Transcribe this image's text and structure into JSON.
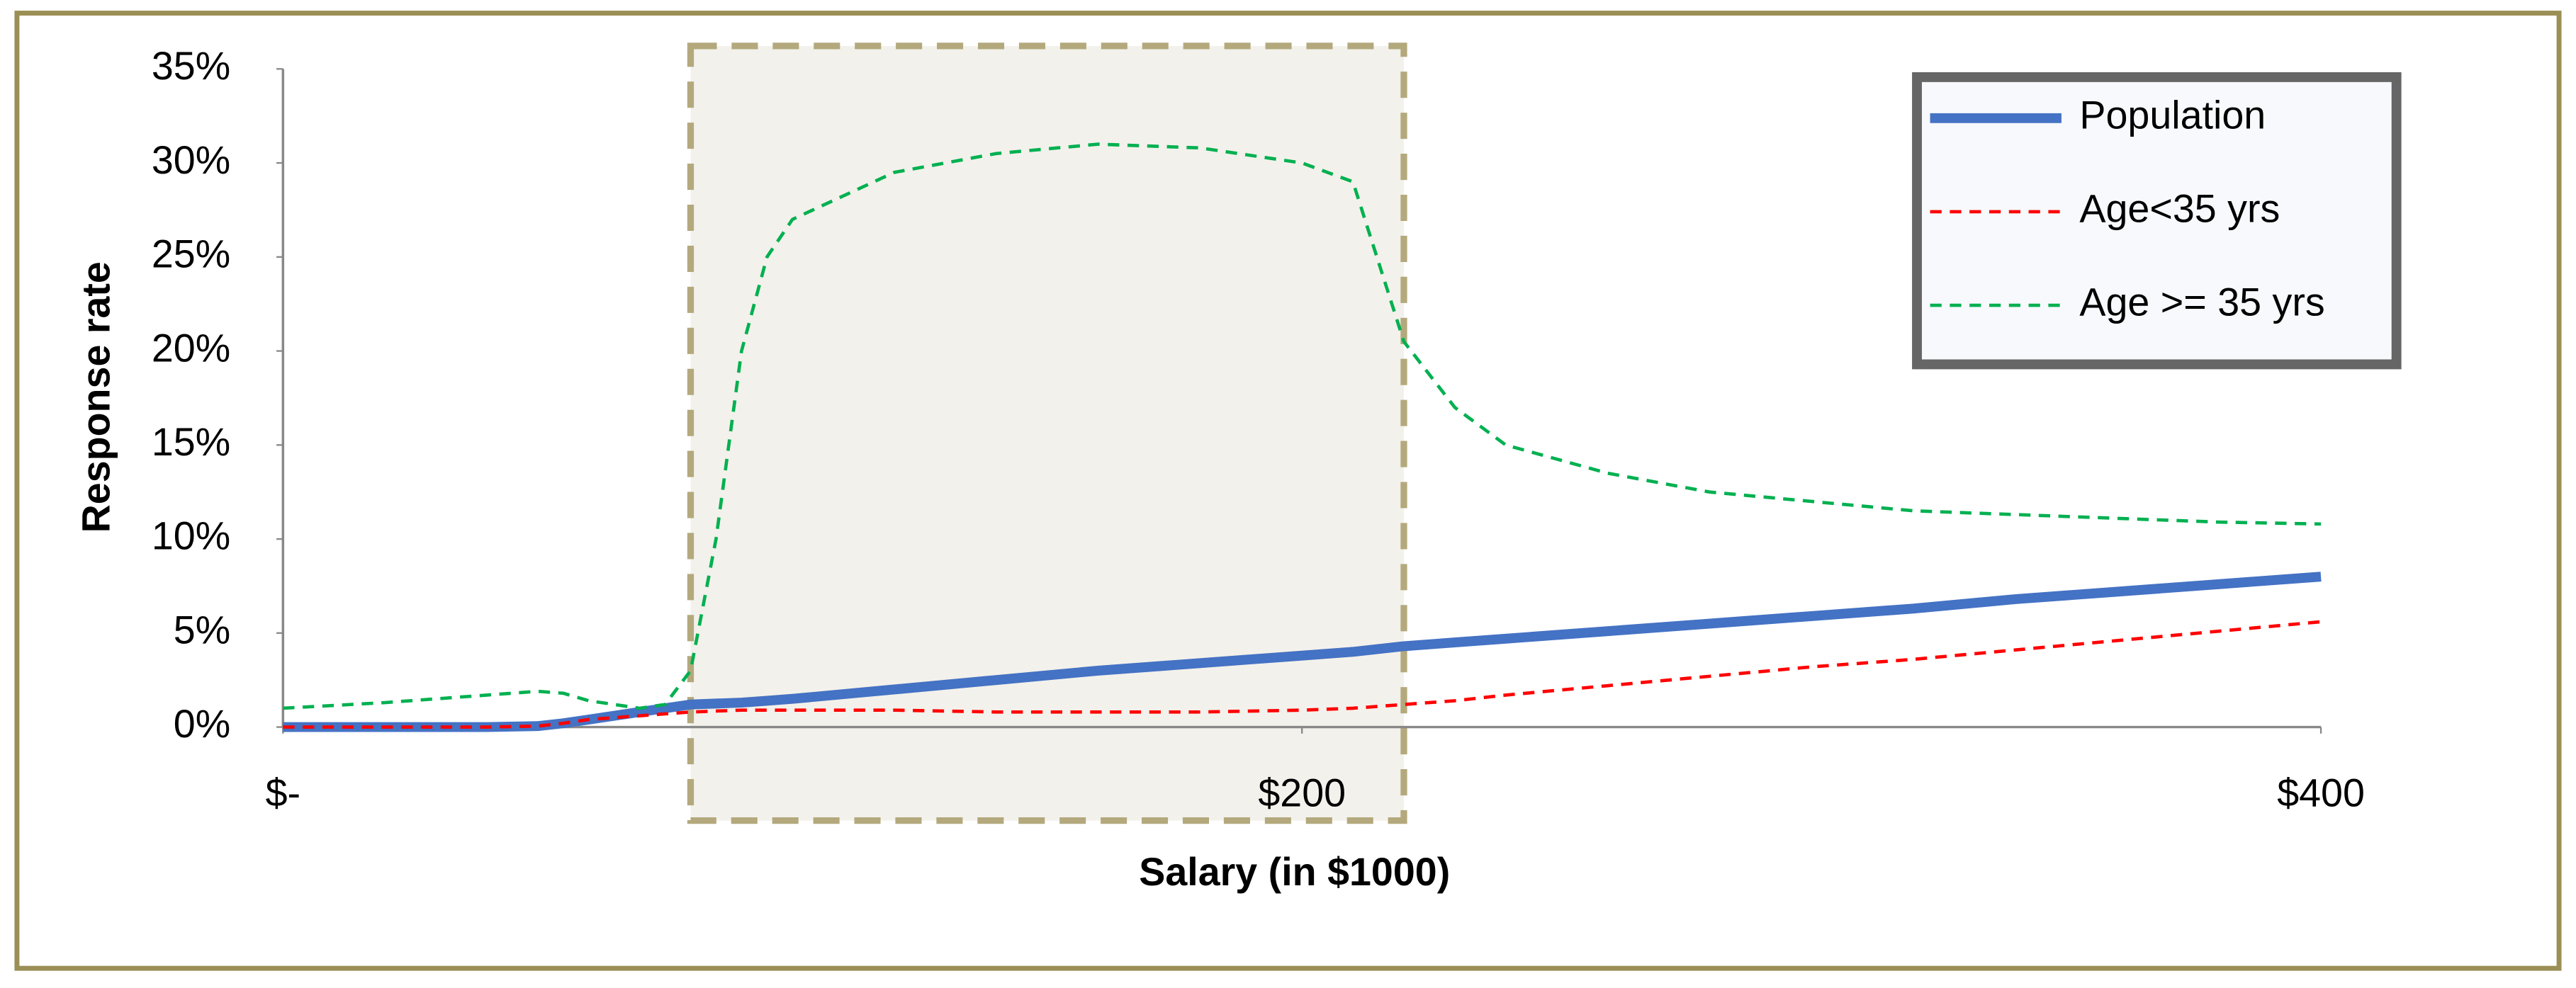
{
  "chart_data": {
    "type": "line",
    "x_label": "Salary (in $1000)",
    "y_label": "Response rate",
    "x": [
      0,
      20,
      40,
      50,
      55,
      60,
      70,
      75,
      80,
      85,
      90,
      95,
      100,
      120,
      140,
      160,
      180,
      200,
      210,
      220,
      230,
      240,
      260,
      280,
      300,
      320,
      340,
      360,
      380,
      400
    ],
    "series": [
      {
        "name": "Population",
        "color": "#4472c4",
        "style": "solid",
        "values": [
          0,
          0,
          0,
          0.05,
          0.2,
          0.4,
          0.8,
          1.0,
          1.2,
          1.25,
          1.3,
          1.4,
          1.5,
          2.0,
          2.5,
          3.0,
          3.4,
          3.8,
          4.0,
          4.3,
          4.5,
          4.7,
          5.1,
          5.5,
          5.9,
          6.3,
          6.8,
          7.2,
          7.6,
          8.0
        ]
      },
      {
        "name": "Age<35 yrs",
        "color": "#ff0000",
        "style": "dashed",
        "values": [
          0,
          0,
          0,
          0.05,
          0.2,
          0.4,
          0.6,
          0.7,
          0.8,
          0.85,
          0.9,
          0.9,
          0.9,
          0.9,
          0.8,
          0.8,
          0.8,
          0.9,
          1.0,
          1.2,
          1.4,
          1.7,
          2.2,
          2.7,
          3.2,
          3.6,
          4.1,
          4.6,
          5.1,
          5.6
        ]
      },
      {
        "name": "Age >= 35 yrs",
        "color": "#00b050",
        "style": "dashed",
        "values": [
          1.0,
          1.3,
          1.7,
          1.9,
          1.8,
          1.4,
          1.0,
          1.2,
          3.0,
          10,
          20,
          25,
          27,
          29.5,
          30.5,
          31,
          30.8,
          30.0,
          29,
          20.5,
          17,
          15,
          13.5,
          12.5,
          12,
          11.5,
          11.3,
          11.1,
          10.9,
          10.8
        ]
      }
    ],
    "xlim": [
      0,
      400
    ],
    "xticks": [
      {
        "value": 0,
        "label": "$-"
      },
      {
        "value": 200,
        "label": "$200"
      },
      {
        "value": 400,
        "label": "$400"
      }
    ],
    "ylim": [
      0,
      35
    ],
    "yticks": [
      {
        "value": 0,
        "label": "0%"
      },
      {
        "value": 5,
        "label": "5%"
      },
      {
        "value": 10,
        "label": "10%"
      },
      {
        "value": 15,
        "label": "15%"
      },
      {
        "value": 20,
        "label": "20%"
      },
      {
        "value": 25,
        "label": "25%"
      },
      {
        "value": 30,
        "label": "30%"
      },
      {
        "value": 35,
        "label": "35%"
      }
    ],
    "highlight_x": [
      80,
      220
    ],
    "legend": "upper right",
    "grid": false
  }
}
